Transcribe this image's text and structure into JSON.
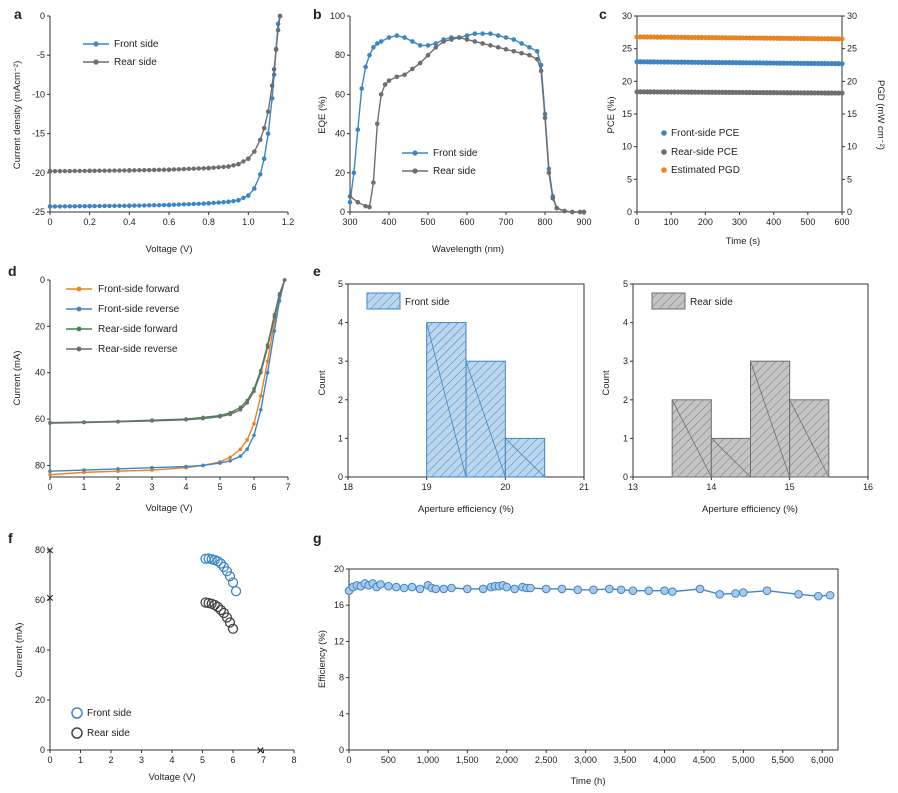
{
  "colors": {
    "blue": "#3d86c6",
    "blue_fill": "#bcd6ee",
    "gray": "#6e6e6e",
    "gray_fill": "#c4c4c4",
    "orange": "#e8851f",
    "green": "#3b8a4e",
    "axis": "#333333"
  },
  "chart_data": [
    {
      "id": "a",
      "panel_label": "a",
      "type": "line",
      "xlabel": "Voltage (V)",
      "ylabel": "Current density (mAcm⁻²)",
      "xlim": [
        0,
        1.2
      ],
      "ylim": [
        -25,
        0
      ],
      "xticks": [
        0,
        0.2,
        0.4,
        0.6,
        0.8,
        1.0,
        1.2
      ],
      "xtick_labels": [
        "0",
        "0.2",
        "0.4",
        "0.6",
        "0.8",
        "1.0",
        "1.2"
      ],
      "yticks": [
        0,
        -5,
        -10,
        -15,
        -20,
        -25
      ],
      "ytick_labels": [
        "0",
        "-5",
        "-10",
        "-15",
        "-20",
        "-25"
      ],
      "legend_position": "top-left",
      "series": [
        {
          "name": "Front side",
          "color": "blue",
          "x": [
            0,
            0.2,
            0.4,
            0.6,
            0.8,
            0.9,
            0.95,
            1.0,
            1.03,
            1.06,
            1.08,
            1.1,
            1.12,
            1.13,
            1.14,
            1.15,
            1.16
          ],
          "y": [
            -24.3,
            -24.25,
            -24.2,
            -24.1,
            -23.9,
            -23.7,
            -23.5,
            -22.9,
            -22.0,
            -20.2,
            -18.2,
            -15.0,
            -10.5,
            -7.5,
            -4.2,
            -1.0,
            0
          ]
        },
        {
          "name": "Rear side",
          "color": "gray",
          "x": [
            0,
            0.2,
            0.4,
            0.6,
            0.8,
            0.9,
            0.95,
            1.0,
            1.03,
            1.06,
            1.08,
            1.1,
            1.12,
            1.13,
            1.14,
            1.15,
            1.16
          ],
          "y": [
            -19.8,
            -19.75,
            -19.7,
            -19.6,
            -19.4,
            -19.2,
            -18.9,
            -18.2,
            -17.3,
            -15.8,
            -14.3,
            -12.2,
            -8.9,
            -6.8,
            -4.3,
            -1.8,
            0
          ]
        }
      ]
    },
    {
      "id": "b",
      "panel_label": "b",
      "type": "line",
      "xlabel": "Wavelength (nm)",
      "ylabel": "EQE (%)",
      "xlim": [
        300,
        900
      ],
      "ylim": [
        0,
        100
      ],
      "xticks": [
        300,
        400,
        500,
        600,
        700,
        800,
        900
      ],
      "xtick_labels": [
        "300",
        "400",
        "500",
        "600",
        "700",
        "800",
        "900"
      ],
      "yticks": [
        0,
        20,
        40,
        60,
        80,
        100
      ],
      "ytick_labels": [
        "0",
        "20",
        "40",
        "60",
        "80",
        "100"
      ],
      "legend_position": "bottom-center",
      "series": [
        {
          "name": "Front side",
          "color": "blue",
          "x": [
            300,
            310,
            320,
            330,
            340,
            350,
            360,
            370,
            380,
            400,
            420,
            440,
            460,
            480,
            500,
            520,
            540,
            560,
            580,
            600,
            620,
            640,
            660,
            680,
            700,
            720,
            740,
            760,
            780,
            790,
            800,
            810,
            820,
            830,
            850,
            870,
            890,
            900
          ],
          "y": [
            5,
            20,
            42,
            63,
            74,
            80,
            84,
            86,
            87,
            89,
            90,
            89,
            87,
            85,
            85,
            86,
            88,
            89,
            89,
            90,
            91,
            91,
            91,
            90,
            89,
            88,
            86,
            84,
            82,
            75,
            50,
            22,
            8,
            2,
            0.5,
            0,
            0,
            0
          ]
        },
        {
          "name": "Rear side",
          "color": "gray",
          "x": [
            300,
            320,
            340,
            350,
            360,
            370,
            380,
            390,
            400,
            420,
            440,
            460,
            480,
            500,
            520,
            540,
            560,
            580,
            600,
            620,
            640,
            660,
            680,
            700,
            720,
            740,
            760,
            780,
            790,
            800,
            810,
            820,
            830,
            850,
            870,
            890,
            900
          ],
          "y": [
            8,
            5,
            3,
            2.5,
            15,
            45,
            60,
            65,
            67,
            69,
            70,
            73,
            76,
            80,
            84,
            87,
            88,
            89,
            88,
            87,
            86,
            85,
            84,
            83,
            82,
            81,
            80,
            78,
            72,
            48,
            20,
            7,
            2,
            0.5,
            0,
            0,
            0
          ]
        }
      ]
    },
    {
      "id": "c",
      "panel_label": "c",
      "type": "scatter",
      "xlabel": "Time (s)",
      "ylabel": "PCE (%)",
      "ylabel_right": "PGD (mW cm⁻²)",
      "xlim": [
        0,
        600
      ],
      "ylim": [
        0,
        30
      ],
      "xticks": [
        0,
        100,
        200,
        300,
        400,
        500,
        600
      ],
      "xtick_labels": [
        "0",
        "100",
        "200",
        "300",
        "400",
        "500",
        "600"
      ],
      "yticks": [
        0,
        5,
        10,
        15,
        20,
        25,
        30
      ],
      "ytick_labels": [
        "0",
        "5",
        "10",
        "15",
        "20",
        "25",
        "30"
      ],
      "yticks_right": [
        0,
        5,
        10,
        15,
        20,
        25,
        30
      ],
      "ytick_labels_right": [
        "0",
        "5",
        "10",
        "15",
        "20",
        "25",
        "30"
      ],
      "legend_position": "bottom-left",
      "series": [
        {
          "name": "Front-side PCE",
          "color": "blue",
          "x_start": 0,
          "x_end": 600,
          "y_start": 23.0,
          "y_end": 22.7
        },
        {
          "name": "Rear-side PCE",
          "color": "gray",
          "x_start": 0,
          "x_end": 600,
          "y_start": 18.4,
          "y_end": 18.2
        },
        {
          "name": "Estimated PGD",
          "color": "orange",
          "x_start": 0,
          "x_end": 600,
          "y_start": 26.8,
          "y_end": 26.5
        }
      ]
    },
    {
      "id": "d",
      "panel_label": "d",
      "type": "line",
      "xlabel": "Voltage (V)",
      "ylabel": "Current (mA)",
      "xlim": [
        0,
        7
      ],
      "ylim": [
        85,
        0
      ],
      "xticks": [
        0,
        1,
        2,
        3,
        4,
        5,
        6,
        7
      ],
      "xtick_labels": [
        "0",
        "1",
        "2",
        "3",
        "4",
        "5",
        "6",
        "7"
      ],
      "yticks": [
        0,
        20,
        40,
        60,
        80
      ],
      "ytick_labels": [
        "0",
        "20",
        "40",
        "60",
        "80"
      ],
      "legend_position": "top-left",
      "series": [
        {
          "name": "Front-side forward",
          "color": "orange",
          "x": [
            0,
            1,
            2,
            3,
            4,
            4.5,
            5,
            5.3,
            5.6,
            5.8,
            6.0,
            6.2,
            6.4,
            6.6,
            6.75,
            6.9
          ],
          "y": [
            84,
            83,
            82.5,
            82,
            81,
            80,
            78.5,
            76.5,
            73,
            69,
            62,
            50,
            35,
            18,
            7,
            0
          ]
        },
        {
          "name": "Front-side reverse",
          "color": "blue",
          "x": [
            0,
            1,
            2,
            3,
            4,
            4.5,
            5,
            5.3,
            5.6,
            5.8,
            6.0,
            6.2,
            6.4,
            6.6,
            6.75,
            6.9
          ],
          "y": [
            82.5,
            82,
            81.5,
            81,
            80.5,
            80,
            79,
            78,
            76,
            73,
            67,
            56,
            40,
            22,
            9,
            0
          ]
        },
        {
          "name": "Rear-side forward",
          "color": "green",
          "x": [
            0,
            1,
            2,
            3,
            4,
            4.5,
            5,
            5.3,
            5.6,
            5.8,
            6.0,
            6.2,
            6.4,
            6.6,
            6.75,
            6.9
          ],
          "y": [
            61.5,
            61.3,
            61,
            60.5,
            60,
            59.3,
            58.5,
            57.3,
            55,
            52,
            47,
            39,
            28,
            15,
            6,
            0
          ]
        },
        {
          "name": "Rear-side reverse",
          "color": "gray",
          "x": [
            0,
            1,
            2,
            3,
            4,
            4.5,
            5,
            5.3,
            5.6,
            5.8,
            6.0,
            6.2,
            6.4,
            6.6,
            6.75,
            6.9
          ],
          "y": [
            61.8,
            61.5,
            61.2,
            60.8,
            60.3,
            59.8,
            59,
            58,
            56,
            53,
            48,
            40,
            29,
            16,
            6.5,
            0
          ]
        }
      ]
    },
    {
      "id": "e1",
      "panel_label": "e",
      "type": "bar",
      "xlabel": "Aperture efficiency (%)",
      "ylabel": "Count",
      "xlim": [
        18,
        21
      ],
      "ylim": [
        0,
        5
      ],
      "xticks": [
        18,
        19,
        20,
        21
      ],
      "xtick_labels": [
        "18",
        "19",
        "20",
        "21"
      ],
      "yticks": [
        0,
        1,
        2,
        3,
        4,
        5
      ],
      "ytick_labels": [
        "0",
        "1",
        "2",
        "3",
        "4",
        "5"
      ],
      "legend_position": "top-left",
      "series": [
        {
          "name": "Front side",
          "color": "blue",
          "fill": "blue_fill",
          "bins": [
            [
              19.0,
              19.5
            ],
            [
              19.5,
              20.0
            ],
            [
              20.0,
              20.5
            ]
          ],
          "values": [
            4,
            3,
            1
          ]
        }
      ]
    },
    {
      "id": "e2",
      "panel_label": "",
      "type": "bar",
      "xlabel": "Aperture efficiency (%)",
      "ylabel": "Count",
      "xlim": [
        13,
        16
      ],
      "ylim": [
        0,
        5
      ],
      "xticks": [
        13,
        14,
        15,
        16
      ],
      "xtick_labels": [
        "13",
        "14",
        "15",
        "16"
      ],
      "yticks": [
        0,
        1,
        2,
        3,
        4,
        5
      ],
      "ytick_labels": [
        "0",
        "1",
        "2",
        "3",
        "4",
        "5"
      ],
      "legend_position": "top-left",
      "series": [
        {
          "name": "Rear side",
          "color": "gray",
          "fill": "gray_fill",
          "bins": [
            [
              13.5,
              14.0
            ],
            [
              14.0,
              14.5
            ],
            [
              14.5,
              15.0
            ],
            [
              15.0,
              15.5
            ]
          ],
          "values": [
            2,
            1,
            3,
            2
          ]
        }
      ]
    },
    {
      "id": "f",
      "panel_label": "f",
      "type": "scatter",
      "xlabel": "Voltage (V)",
      "ylabel": "Current (mA)",
      "xlim": [
        0,
        8
      ],
      "ylim": [
        0,
        80
      ],
      "xticks": [
        0,
        1,
        2,
        3,
        4,
        5,
        6,
        7,
        8
      ],
      "xtick_labels": [
        "0",
        "1",
        "2",
        "3",
        "4",
        "5",
        "6",
        "7",
        "8"
      ],
      "yticks": [
        0,
        20,
        40,
        60,
        80
      ],
      "ytick_labels": [
        "0",
        "20",
        "40",
        "60",
        "80"
      ],
      "legend_position": "bottom-left",
      "series": [
        {
          "name": "Front side",
          "color": "blue",
          "x": [
            5.1,
            5.2,
            5.3,
            5.4,
            5.5,
            5.6,
            5.7,
            5.8,
            5.9,
            6.0,
            6.1
          ],
          "y": [
            76.5,
            76.6,
            76.3,
            76.0,
            75.5,
            74.6,
            73.2,
            71.5,
            69.5,
            67,
            63.5
          ]
        },
        {
          "name": "Rear side",
          "color": "gray",
          "x": [
            5.1,
            5.2,
            5.3,
            5.4,
            5.5,
            5.6,
            5.7,
            5.8,
            5.9,
            6.0
          ],
          "y": [
            59,
            58.8,
            58.5,
            58,
            57.2,
            56,
            54.8,
            53,
            51,
            48.5
          ]
        }
      ],
      "markers": [
        {
          "symbol": "×",
          "x": 0,
          "y": 80,
          "color": "blue"
        },
        {
          "symbol": "×",
          "x": 0,
          "y": 61,
          "color": "gray"
        },
        {
          "symbol": "×",
          "x": 6.9,
          "y": 0,
          "color": "blue"
        },
        {
          "symbol": "×",
          "x": 6.9,
          "y": 0,
          "color": "gray"
        }
      ]
    },
    {
      "id": "g",
      "panel_label": "g",
      "type": "line",
      "xlabel": "Time (h)",
      "ylabel": "Efficiency (%)",
      "xlim": [
        0,
        6200
      ],
      "ylim": [
        0,
        20
      ],
      "xticks": [
        0,
        500,
        1000,
        1500,
        2000,
        2500,
        3000,
        3500,
        4000,
        4500,
        5000,
        5500,
        6000
      ],
      "xtick_labels": [
        "0",
        "500",
        "1,000",
        "1,500",
        "2,000",
        "2,500",
        "3,000",
        "3,500",
        "4,000",
        "4,500",
        "5,000",
        "5,500",
        "6,000"
      ],
      "yticks": [
        0,
        4,
        8,
        12,
        16,
        20
      ],
      "ytick_labels": [
        "0",
        "4",
        "8",
        "12",
        "16",
        "20"
      ],
      "series": [
        {
          "name": "Efficiency",
          "color": "blue",
          "x": [
            0,
            50,
            100,
            150,
            200,
            250,
            300,
            350,
            400,
            500,
            600,
            700,
            800,
            900,
            1000,
            1050,
            1100,
            1200,
            1300,
            1500,
            1700,
            1800,
            1850,
            1900,
            1950,
            2000,
            2100,
            2200,
            2250,
            2300,
            2500,
            2700,
            2900,
            3100,
            3300,
            3450,
            3600,
            3800,
            4000,
            4100,
            4450,
            4700,
            4900,
            5000,
            5300,
            5700,
            5950,
            6100
          ],
          "y": [
            17.6,
            18.0,
            18.2,
            18.1,
            18.4,
            18.2,
            18.4,
            18.0,
            18.3,
            18.1,
            18.0,
            17.9,
            18.0,
            17.8,
            18.2,
            17.9,
            17.8,
            17.8,
            17.9,
            17.8,
            17.8,
            18.0,
            18.1,
            18.1,
            18.2,
            18.0,
            17.8,
            18.0,
            17.9,
            17.9,
            17.8,
            17.8,
            17.7,
            17.7,
            17.8,
            17.7,
            17.6,
            17.6,
            17.6,
            17.5,
            17.8,
            17.2,
            17.3,
            17.4,
            17.6,
            17.2,
            17.0,
            17.1
          ]
        }
      ]
    }
  ]
}
